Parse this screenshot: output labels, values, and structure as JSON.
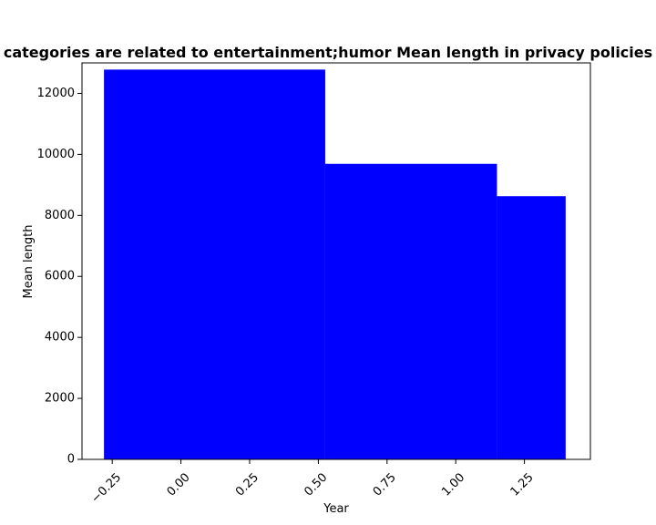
{
  "chart_data": {
    "type": "bar",
    "title": "categories are related to entertainment;humor Mean length in privacy policies",
    "xlabel": "Year",
    "ylabel": "Mean length",
    "bars": [
      {
        "x_start": -0.28,
        "x_end": 0.525,
        "value": 12780
      },
      {
        "x_start": 0.525,
        "x_end": 1.15,
        "value": 9690
      },
      {
        "x_start": 1.15,
        "x_end": 1.4,
        "value": 8630
      }
    ],
    "xlim": [
      -0.36,
      1.49
    ],
    "ylim": [
      0,
      13000
    ],
    "xticks": [
      -0.25,
      0.0,
      0.25,
      0.5,
      0.75,
      1.0,
      1.25
    ],
    "xtick_labels": [
      "−0.25",
      "0.00",
      "0.25",
      "0.50",
      "0.75",
      "1.00",
      "1.25"
    ],
    "yticks": [
      0,
      2000,
      4000,
      6000,
      8000,
      10000,
      12000
    ],
    "ytick_labels": [
      "0",
      "2000",
      "4000",
      "6000",
      "8000",
      "10000",
      "12000"
    ],
    "bar_color": "#0000ff",
    "grid": false,
    "legend": "none"
  }
}
